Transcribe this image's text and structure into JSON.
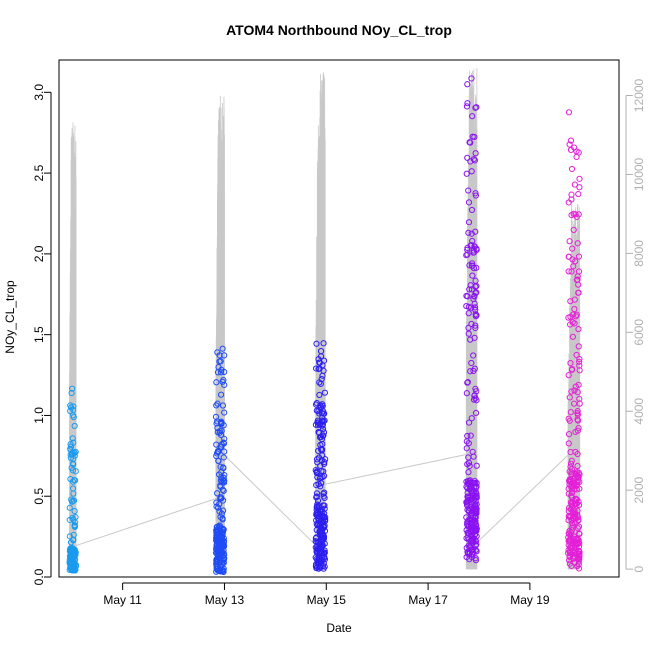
{
  "chart_data": {
    "type": "scatter",
    "title": "ATOM4 Northbound NOy_CL_trop",
    "xlabel": "Date",
    "ylabel": "NOy_CL_trop",
    "x_type": "date",
    "xlim": [
      "2018-05-09T18:00",
      "2018-05-20T18:00"
    ],
    "ylim": [
      0,
      3.2
    ],
    "y2lim": [
      -200,
      12900
    ],
    "x_ticks": [
      {
        "value": "2018-05-11T00:00",
        "label": "May 11"
      },
      {
        "value": "2018-05-13T00:00",
        "label": "May 13"
      },
      {
        "value": "2018-05-15T00:00",
        "label": "May 15"
      },
      {
        "value": "2018-05-17T00:00",
        "label": "May 17"
      },
      {
        "value": "2018-05-19T00:00",
        "label": "May 19"
      }
    ],
    "y_ticks": [
      {
        "value": 0.0,
        "label": "0.0"
      },
      {
        "value": 0.5,
        "label": "0.5"
      },
      {
        "value": 1.0,
        "label": "1.0"
      },
      {
        "value": 1.5,
        "label": "1.5"
      },
      {
        "value": 2.0,
        "label": "2.0"
      },
      {
        "value": 2.5,
        "label": "2.5"
      },
      {
        "value": 3.0,
        "label": "3.0"
      }
    ],
    "y2_ticks": [
      {
        "value": 0,
        "label": "0"
      },
      {
        "value": 2000,
        "label": "2000"
      },
      {
        "value": 4000,
        "label": "4000"
      },
      {
        "value": 6000,
        "label": "6000"
      },
      {
        "value": 8000,
        "label": "8000"
      },
      {
        "value": 10000,
        "label": "10000"
      },
      {
        "value": 12000,
        "label": "12000"
      }
    ],
    "grid": false,
    "legend": "none",
    "altitude_color": "#c8c8c8",
    "track_color": "#c8c8c8",
    "flights": [
      {
        "color": "#1a9bef",
        "start": "2018-05-09T23:00",
        "end": "2018-05-10T02:00",
        "dense_min": 0.04,
        "dense_max": 0.18,
        "tail_max": 1.18,
        "n": 150,
        "alt_max": 11400
      },
      {
        "color": "#1f4cf5",
        "start": "2018-05-12T20:00",
        "end": "2018-05-13T00:00",
        "dense_min": 0.03,
        "dense_max": 0.32,
        "tail_max": 1.44,
        "n": 220,
        "alt_max": 12000
      },
      {
        "color": "#2b1ff0",
        "start": "2018-05-14T19:00",
        "end": "2018-05-14T23:30",
        "dense_min": 0.05,
        "dense_max": 0.45,
        "tail_max": 1.45,
        "n": 230,
        "alt_max": 12600
      },
      {
        "color": "#8a13f2",
        "start": "2018-05-17T18:00",
        "end": "2018-05-17T23:00",
        "dense_min": 0.1,
        "dense_max": 0.6,
        "tail_max": 3.12,
        "n": 280,
        "alt_max": 12700
      },
      {
        "color": "#e51fd8",
        "start": "2018-05-19T18:00",
        "end": "2018-05-19T23:30",
        "dense_min": 0.05,
        "dense_max": 0.65,
        "tail_max": 2.88,
        "n": 250,
        "alt_max": 9300
      }
    ],
    "track": [
      {
        "x": "2018-05-10T01:00",
        "y": 0.19
      },
      {
        "x": "2018-05-12T21:00",
        "y": 0.49
      },
      {
        "x": "2018-05-12T23:30",
        "y": 0.76
      },
      {
        "x": "2018-05-14T19:30",
        "y": 0.19
      },
      {
        "x": "2018-05-14T22:00",
        "y": 0.57
      },
      {
        "x": "2018-05-17T18:30",
        "y": 0.76
      },
      {
        "x": "2018-05-17T22:00",
        "y": 0.2
      },
      {
        "x": "2018-05-19T20:00",
        "y": 0.78
      }
    ]
  }
}
